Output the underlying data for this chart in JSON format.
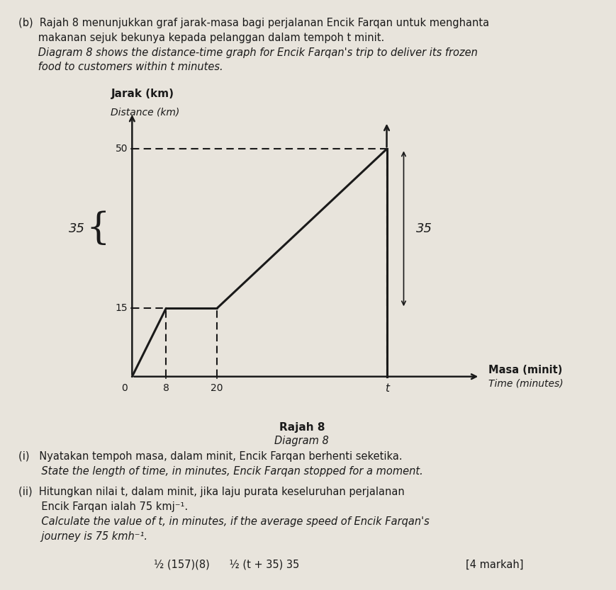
{
  "title_malay": "Jarak (km)",
  "title_english": "Distance (km)",
  "xlabel_malay": "Masa (minit)",
  "xlabel_english": "Time (minutes)",
  "diagram_label_malay": "Rajah 8",
  "diagram_label_english": "Diagram 8",
  "t_label": "t",
  "brace_label": "35",
  "right_label": "35",
  "line_color": "#1a1a1a",
  "dashed_color": "#1a1a1a",
  "background_color": "#e8e4dc",
  "header_text_line1": "(b)  Rajah 8 menunjukkan graf jarak-masa bagi perjalanan Encik Farqan untuk menghanta",
  "header_text_line2": "      makanan sejuk bekunya kepada pelanggan dalam tempoh t minit.",
  "header_text_line3": "      Diagram 8 shows the distance-time graph for Encik Farqan's trip to deliver its frozen",
  "header_text_line4": "      food to customers within t minutes.",
  "qi_text1": "(i)   Nyatakan tempoh masa, dalam minit, Encik Farqan berhenti seketika.",
  "qi_text2": "       State the length of time, in minutes, Encik Farqan stopped for a moment.",
  "qii_text1": "(ii)  Hitungkan nilai t, dalam minit, jika laju purata keseluruhan perjalanan",
  "qii_text2": "       Encik Farqan ialah 75 kmj⁻¹.",
  "qii_text3": "       Calculate the value of t, in minutes, if the average speed of Encik Farqan's",
  "qii_text4": "       journey is 75 kmh⁻¹.",
  "markah_text": "[4 markah]",
  "working_text": "½ (157)(8)      ½ (t + 35) 35",
  "font_size_header": 10.5,
  "font_size_graph_label": 10,
  "font_size_tick": 10,
  "font_size_q": 10.5
}
